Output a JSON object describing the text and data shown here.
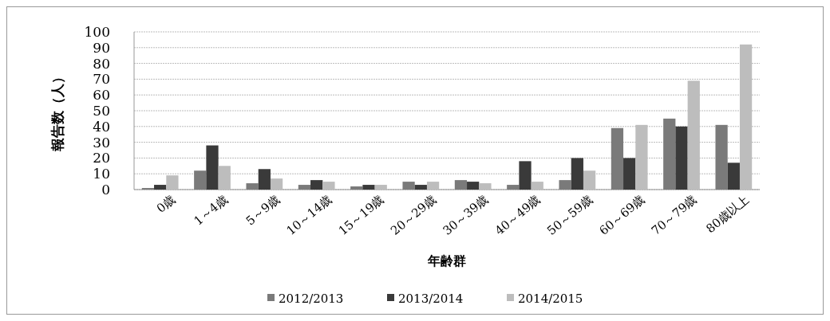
{
  "chart_data": {
    "type": "bar",
    "xlabel": "年齢群",
    "ylabel": "報告数（人）",
    "categories": [
      "0歳",
      "1～4歳",
      "5～9歳",
      "10～14歳",
      "15～19歳",
      "20～29歳",
      "30～39歳",
      "40～49歳",
      "50～59歳",
      "60～69歳",
      "70～79歳",
      "80歳以上"
    ],
    "series": [
      {
        "name": "2012/2013",
        "color": "#7a7a7a",
        "values": [
          1,
          12,
          4,
          3,
          2,
          5,
          6,
          3,
          6,
          39,
          45,
          41
        ]
      },
      {
        "name": "2013/2014",
        "color": "#3a3a3a",
        "values": [
          3,
          28,
          13,
          6,
          3,
          3,
          5,
          18,
          20,
          20,
          40,
          17
        ]
      },
      {
        "name": "2014/2015",
        "color": "#bdbdbd",
        "values": [
          9,
          15,
          7,
          5,
          3,
          5,
          4,
          5,
          12,
          41,
          69,
          92
        ]
      }
    ],
    "ylim": [
      0,
      100
    ],
    "yticks": [
      0,
      10,
      20,
      30,
      40,
      50,
      60,
      70,
      80,
      90,
      100
    ],
    "grid": "y",
    "legend": "bottom"
  }
}
